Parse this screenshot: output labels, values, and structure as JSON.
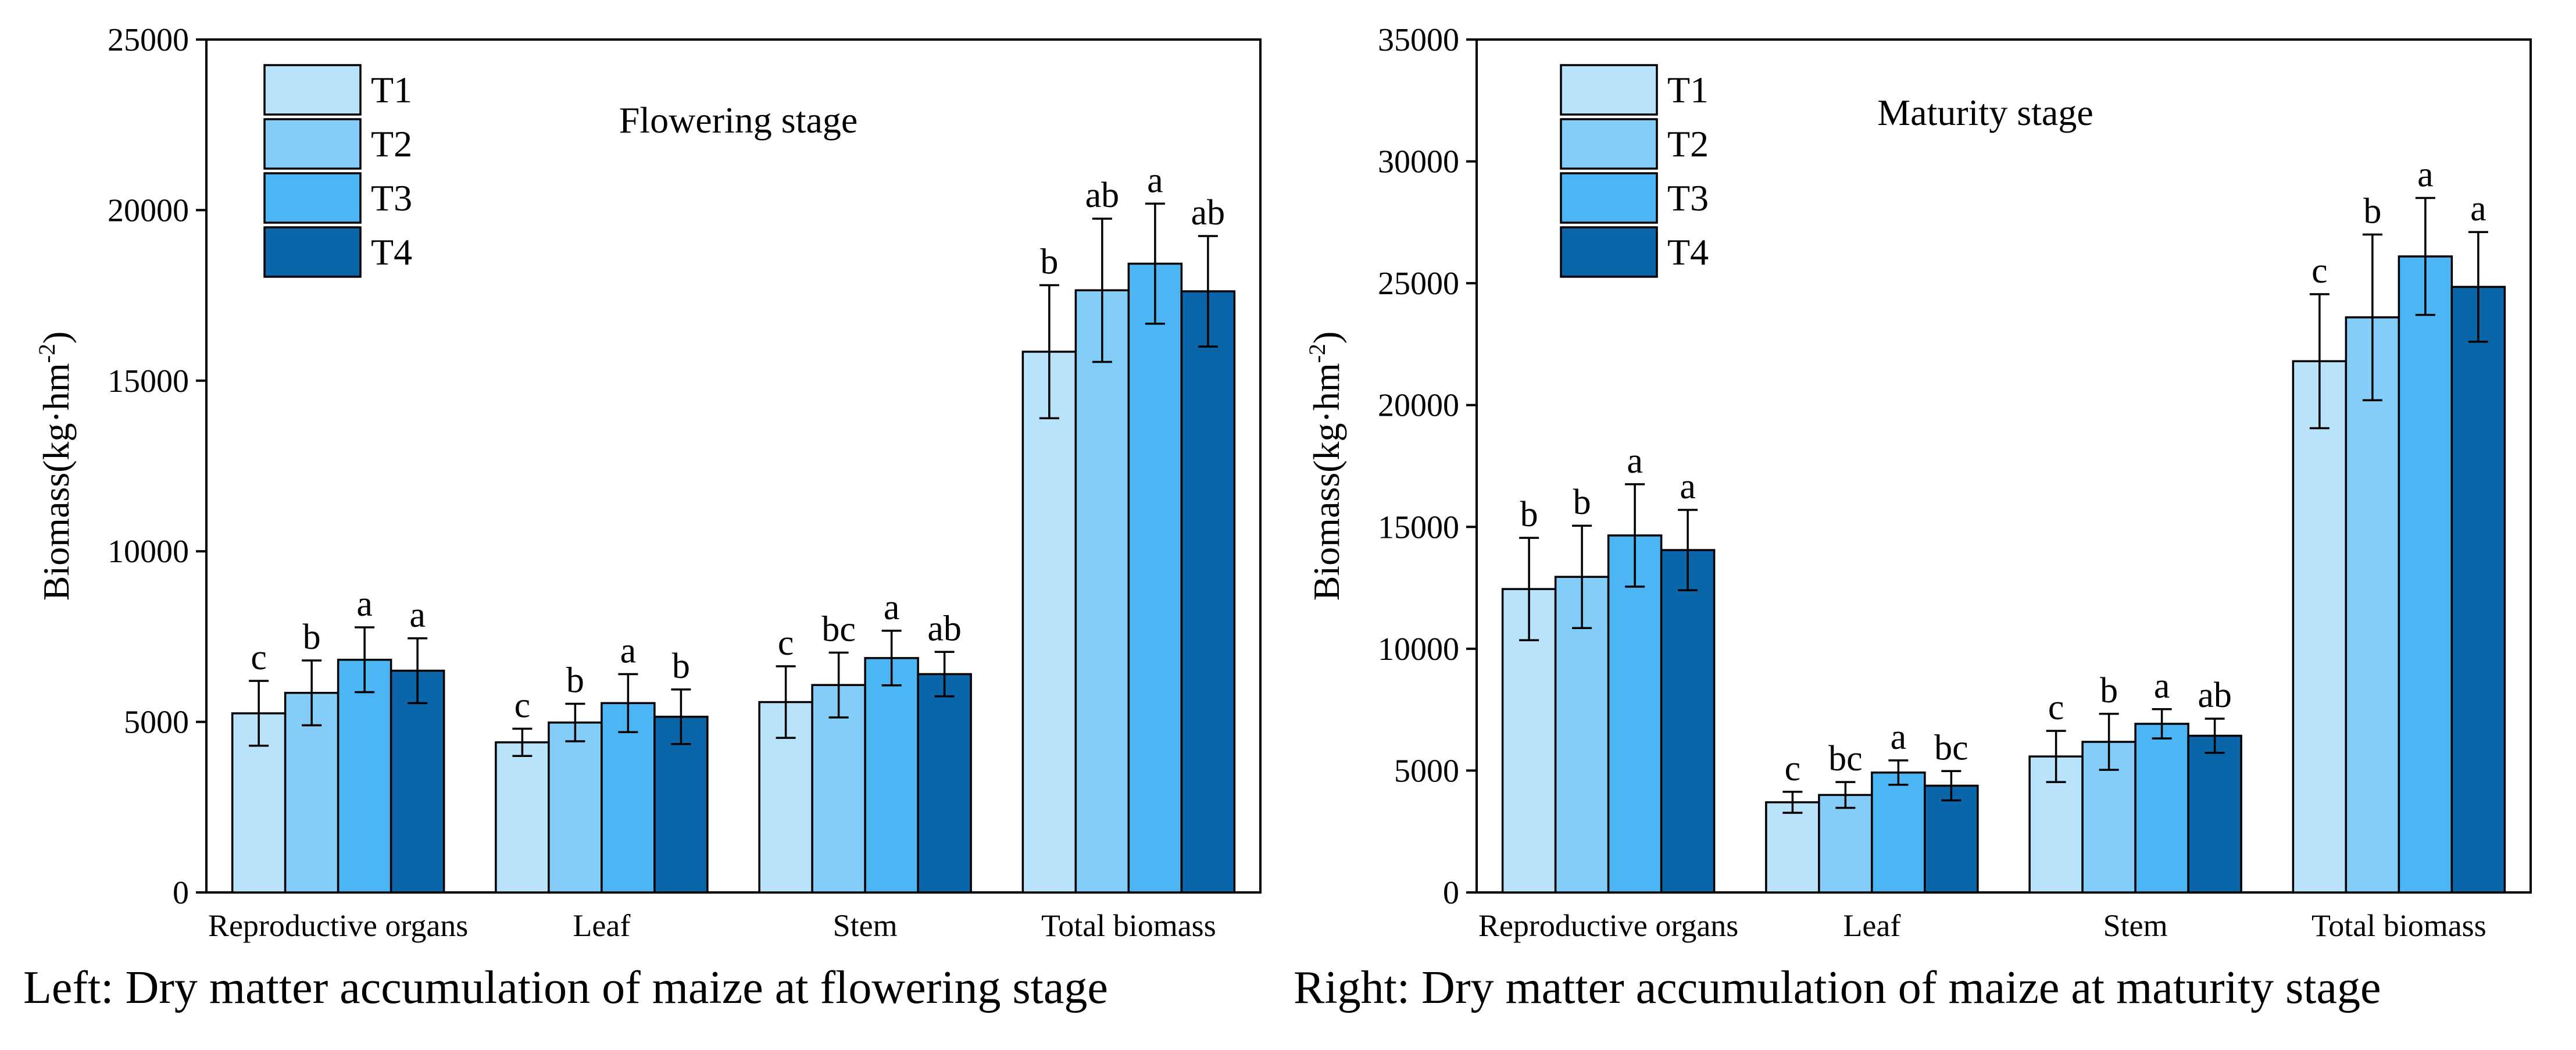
{
  "chart_data": [
    {
      "type": "bar",
      "stage_label": "Flowering stage",
      "ylabel_main": "Biomass(kg·hm",
      "ylabel_sup": "-2",
      "ylabel_close": ")",
      "ylim": [
        0,
        25000
      ],
      "yticks": [
        "0",
        "5000",
        "10000",
        "15000",
        "20000",
        "25000"
      ],
      "categories": [
        "Reproductive organs",
        "Leaf",
        "Stem",
        "Total biomass"
      ],
      "legend_position": "top-left",
      "series": [
        {
          "name": "T1",
          "color": "#b9e3fb",
          "values": [
            5250,
            4400,
            5580,
            15850
          ],
          "errors": [
            950,
            400,
            1050,
            1950
          ],
          "letters": [
            "c",
            "c",
            "c",
            "b"
          ]
        },
        {
          "name": "T2",
          "color": "#84cdf8",
          "values": [
            5850,
            4980,
            6080,
            17650
          ],
          "errors": [
            950,
            550,
            950,
            2100
          ],
          "letters": [
            "b",
            "b",
            "bc",
            "ab"
          ]
        },
        {
          "name": "T3",
          "color": "#4cb5f3",
          "values": [
            6820,
            5550,
            6870,
            18430
          ],
          "errors": [
            950,
            850,
            800,
            1760
          ],
          "letters": [
            "a",
            "a",
            "a",
            "a"
          ]
        },
        {
          "name": "T4",
          "color": "#0a66a8",
          "values": [
            6500,
            5150,
            6400,
            17620
          ],
          "errors": [
            950,
            800,
            650,
            1620
          ],
          "letters": [
            "a",
            "b",
            "ab",
            "ab"
          ]
        }
      ]
    },
    {
      "type": "bar",
      "stage_label": "Maturity stage",
      "ylabel_main": "Biomass(kg·hm",
      "ylabel_sup": "-2",
      "ylabel_close": ")",
      "ylim": [
        0,
        35000
      ],
      "yticks": [
        "0",
        "5000",
        "10000",
        "15000",
        "20000",
        "25000",
        "30000",
        "35000"
      ],
      "categories": [
        "Reproductive organs",
        "Leaf",
        "Stem",
        "Total biomass"
      ],
      "legend_position": "top-left",
      "series": [
        {
          "name": "T1",
          "color": "#b9e3fb",
          "values": [
            12450,
            3700,
            5580,
            21800
          ],
          "errors": [
            2100,
            430,
            1050,
            2750
          ],
          "letters": [
            "b",
            "c",
            "c",
            "c"
          ]
        },
        {
          "name": "T2",
          "color": "#84cdf8",
          "values": [
            12950,
            4000,
            6180,
            23600
          ],
          "errors": [
            2100,
            530,
            1150,
            3400
          ],
          "letters": [
            "b",
            "bc",
            "b",
            "b"
          ]
        },
        {
          "name": "T3",
          "color": "#4cb5f3",
          "values": [
            14650,
            4920,
            6920,
            26100
          ],
          "errors": [
            2100,
            500,
            600,
            2400
          ],
          "letters": [
            "a",
            "a",
            "a",
            "a"
          ]
        },
        {
          "name": "T4",
          "color": "#0a66a8",
          "values": [
            14050,
            4380,
            6430,
            24850
          ],
          "errors": [
            1650,
            600,
            700,
            2250
          ],
          "letters": [
            "a",
            "bc",
            "ab",
            "a"
          ]
        }
      ]
    }
  ],
  "captions": {
    "left": "Left: Dry matter accumulation of maize at flowering stage",
    "right": "Right: Dry matter accumulation of maize at maturity stage"
  }
}
